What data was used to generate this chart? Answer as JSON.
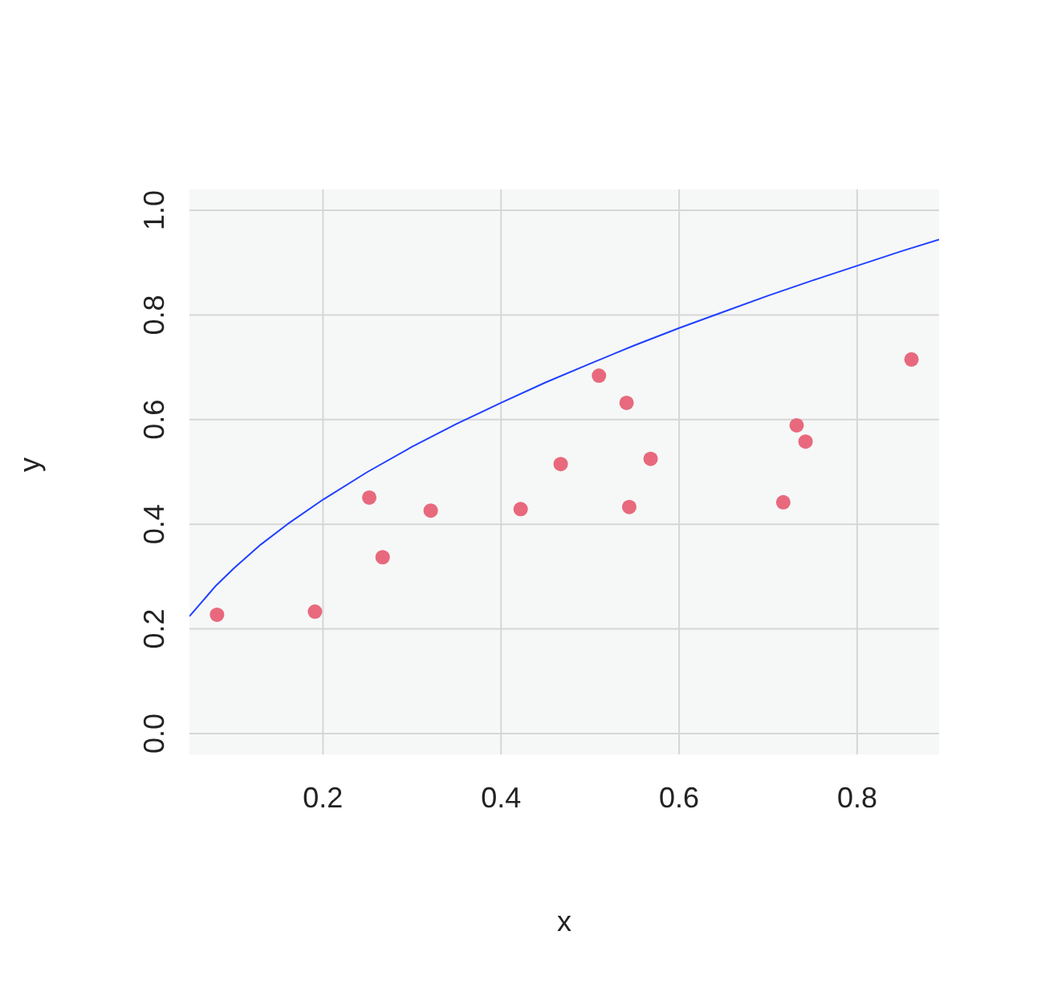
{
  "chart_data": {
    "type": "scatter",
    "xlabel": "x",
    "ylabel": "y",
    "xlim": [
      0.05,
      0.892
    ],
    "ylim": [
      -0.04,
      1.04
    ],
    "xticks": [
      0.2,
      0.4,
      0.6,
      0.8
    ],
    "yticks": [
      {
        "value": 0,
        "label": "0.0"
      },
      0.2,
      0.4,
      0.6,
      0.8,
      {
        "value": 1,
        "label": "1.0"
      }
    ],
    "grid": true,
    "legend": false,
    "series": [
      {
        "marker": "circle",
        "color": "#e8697d",
        "x": [
          0.081,
          0.191,
          0.252,
          0.267,
          0.321,
          0.422,
          0.467,
          0.51,
          0.541,
          0.544,
          0.568,
          0.717,
          0.732,
          0.742,
          0.861
        ],
        "values": [
          0.227,
          0.233,
          0.451,
          0.337,
          0.426,
          0.429,
          0.515,
          0.684,
          0.632,
          0.433,
          0.525,
          0.442,
          0.589,
          0.558,
          0.715
        ]
      },
      {
        "type": "line",
        "color": "#2040ff",
        "line_style": "solid",
        "x": [
          0.05,
          0.08,
          0.1,
          0.13,
          0.16,
          0.2,
          0.25,
          0.3,
          0.35,
          0.4,
          0.45,
          0.5,
          0.55,
          0.6,
          0.65,
          0.7,
          0.75,
          0.8,
          0.85,
          0.892
        ],
        "values": [
          0.224,
          0.283,
          0.316,
          0.361,
          0.4,
          0.447,
          0.5,
          0.548,
          0.592,
          0.632,
          0.671,
          0.707,
          0.742,
          0.775,
          0.806,
          0.837,
          0.866,
          0.894,
          0.922,
          0.944
        ]
      }
    ]
  }
}
